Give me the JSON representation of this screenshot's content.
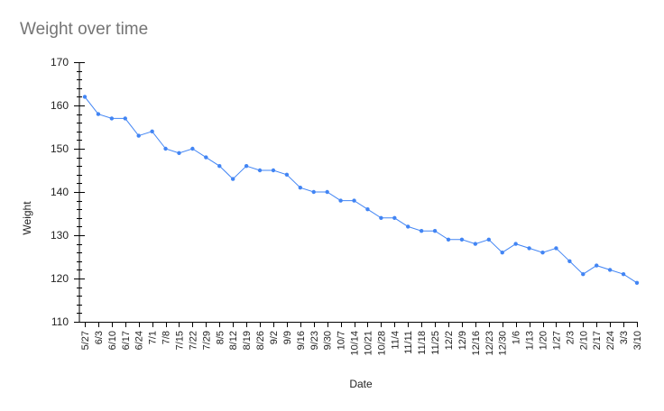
{
  "chart_data": {
    "type": "line",
    "title": "Weight over time",
    "xlabel": "Date",
    "ylabel": "Weight",
    "ylim": [
      110,
      170
    ],
    "yticks": [
      110,
      120,
      130,
      140,
      150,
      160,
      170
    ],
    "grid": false,
    "legend": "none",
    "colors": {
      "line": "#4285f4",
      "axis": "#000000",
      "title": "#757575",
      "text": "#222222"
    },
    "categories": [
      "5/27",
      "6/3",
      "6/10",
      "6/17",
      "6/24",
      "7/1",
      "7/8",
      "7/15",
      "7/22",
      "7/29",
      "8/5",
      "8/12",
      "8/19",
      "8/26",
      "9/2",
      "9/9",
      "9/16",
      "9/23",
      "9/30",
      "10/7",
      "10/14",
      "10/21",
      "10/28",
      "11/4",
      "11/11",
      "11/18",
      "11/25",
      "12/2",
      "12/9",
      "12/16",
      "12/23",
      "12/30",
      "1/6",
      "1/13",
      "1/20",
      "1/27",
      "2/3",
      "2/10",
      "2/17",
      "2/24",
      "3/3",
      "3/10"
    ],
    "series": [
      {
        "values": [
          162,
          158,
          157,
          157,
          153,
          154,
          150,
          149,
          150,
          148,
          146,
          143,
          146,
          145,
          145,
          144,
          141,
          140,
          140,
          138,
          138,
          136,
          134,
          134,
          132,
          131,
          131,
          129,
          129,
          128,
          129,
          126,
          128,
          127,
          126,
          127,
          124,
          121,
          123,
          122,
          121,
          119
        ]
      }
    ]
  }
}
